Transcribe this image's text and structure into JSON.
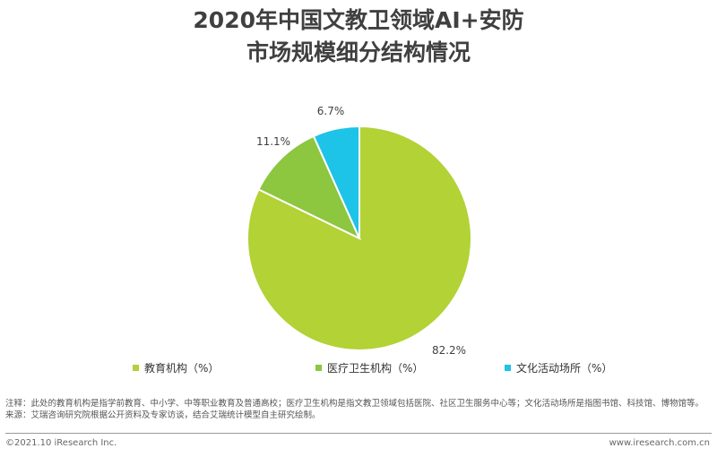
{
  "title_line1": "2020年中国文教卫领域AI+安防",
  "title_line2": "市场规模细分结构情况",
  "chart_data": {
    "type": "pie",
    "unit": "%",
    "slices": [
      {
        "label": "教育机构（%）",
        "value": 82.2,
        "value_label": "82.2%",
        "color": "#b2d235"
      },
      {
        "label": "医疗卫生机构（%）",
        "value": 11.1,
        "value_label": "11.1%",
        "color": "#8dc63f"
      },
      {
        "label": "文化活动场所（%）",
        "value": 6.7,
        "value_label": "6.7%",
        "color": "#1ec3e8"
      }
    ],
    "legend_position": "bottom",
    "start_angle_deg": 0,
    "direction": "clockwise"
  },
  "notes": {
    "note": "注释：此处的教育机构是指学前教育、中小学、中等职业教育及普通高校；医疗卫生机构是指文教卫领域包括医院、社区卫生服务中心等；文化活动场所是指图书馆、科技馆、博物馆等。",
    "source": "来源：艾瑞咨询研究院根据公开资料及专家访谈，结合艾瑞统计模型自主研究绘制。"
  },
  "footer": {
    "copyright": "©2021.10 iResearch Inc.",
    "website": "www.iresearch.com.cn"
  }
}
